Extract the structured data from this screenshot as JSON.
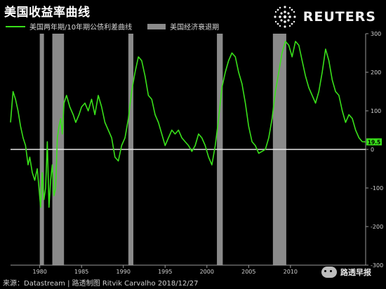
{
  "title": "美国收益率曲线",
  "logo": {
    "text": "REUTERS"
  },
  "legend": {
    "spread_label": "美国两年期/10年期公债利差曲线",
    "recession_label": "美国经济衰退期"
  },
  "footer": {
    "source": "来源：Datastream | 路透制图 Ritvik Carvalho 2018/12/27"
  },
  "watermark": {
    "text": "路透早报"
  },
  "colors": {
    "series": "#39e01a",
    "recession": "#8a8a8a",
    "zero_line": "#e6e6e6",
    "background": "#000000",
    "last_label": "#39e01a"
  },
  "chart_data": {
    "type": "line",
    "title": "美国收益率曲线",
    "xlabel": "",
    "ylabel": "",
    "xlim": [
      1976.5,
      2019.0
    ],
    "ylim": [
      -300,
      300
    ],
    "x_ticks": [
      1980,
      1985,
      1990,
      1995,
      2000,
      2005,
      2010
    ],
    "y_ticks": [
      300,
      200,
      100,
      0,
      -100,
      -200,
      -300
    ],
    "grid": false,
    "legend_position": "top-left",
    "recessions": [
      [
        1980.0,
        1980.5
      ],
      [
        1981.5,
        1982.9
      ],
      [
        1990.6,
        1991.2
      ],
      [
        2001.2,
        2001.9
      ],
      [
        2007.9,
        2009.5
      ]
    ],
    "last_value": "19.5",
    "series": [
      {
        "name": "美国两年期/10年期公债利差曲线",
        "x": [
          1976.5,
          1976.8,
          1977.1,
          1977.4,
          1977.7,
          1978.0,
          1978.3,
          1978.6,
          1978.8,
          1979.1,
          1979.4,
          1979.7,
          1979.9,
          1980.1,
          1980.3,
          1980.5,
          1980.7,
          1980.9,
          1981.1,
          1981.3,
          1981.5,
          1981.7,
          1981.9,
          1982.1,
          1982.3,
          1982.5,
          1982.7,
          1982.9,
          1983.2,
          1983.6,
          1984.0,
          1984.3,
          1984.7,
          1985.0,
          1985.4,
          1985.8,
          1986.2,
          1986.6,
          1987.0,
          1987.4,
          1987.8,
          1988.2,
          1988.6,
          1989.0,
          1989.4,
          1989.8,
          1990.2,
          1990.6,
          1991.0,
          1991.4,
          1991.8,
          1992.2,
          1992.6,
          1993.0,
          1993.4,
          1993.8,
          1994.2,
          1994.6,
          1995.0,
          1995.4,
          1995.8,
          1996.2,
          1996.6,
          1997.0,
          1997.4,
          1997.8,
          1998.2,
          1998.6,
          1999.0,
          1999.4,
          1999.8,
          2000.2,
          2000.6,
          2001.0,
          2001.4,
          2001.8,
          2002.2,
          2002.6,
          2003.0,
          2003.4,
          2003.8,
          2004.2,
          2004.6,
          2005.0,
          2005.4,
          2005.8,
          2006.2,
          2006.6,
          2007.0,
          2007.4,
          2007.8,
          2008.2,
          2008.6,
          2009.0,
          2009.4,
          2009.8,
          2010.2,
          2010.6,
          2011.0,
          2011.4,
          2011.8,
          2012.2,
          2012.6,
          2013.0,
          2013.4,
          2013.8,
          2014.2,
          2014.6,
          2015.0,
          2015.4,
          2015.8,
          2016.2,
          2016.6,
          2017.0,
          2017.4,
          2017.8,
          2018.2,
          2018.6,
          2018.98
        ],
        "values": [
          70,
          150,
          130,
          100,
          60,
          30,
          10,
          -40,
          -20,
          -60,
          -80,
          -50,
          -100,
          -150,
          -60,
          -130,
          -100,
          20,
          -150,
          -80,
          -40,
          -120,
          -100,
          30,
          60,
          80,
          40,
          120,
          140,
          110,
          90,
          70,
          90,
          110,
          120,
          100,
          130,
          90,
          140,
          110,
          70,
          50,
          30,
          -20,
          -30,
          10,
          30,
          80,
          150,
          200,
          240,
          230,
          190,
          140,
          130,
          90,
          70,
          40,
          10,
          30,
          50,
          40,
          50,
          30,
          20,
          10,
          -5,
          10,
          40,
          30,
          10,
          -20,
          -40,
          10,
          80,
          160,
          200,
          230,
          250,
          240,
          200,
          170,
          120,
          60,
          20,
          10,
          -10,
          -5,
          0,
          30,
          80,
          150,
          200,
          250,
          280,
          270,
          240,
          280,
          270,
          230,
          190,
          160,
          140,
          120,
          150,
          200,
          260,
          230,
          180,
          150,
          140,
          100,
          70,
          90,
          80,
          50,
          30,
          20,
          19.5
        ]
      }
    ]
  }
}
